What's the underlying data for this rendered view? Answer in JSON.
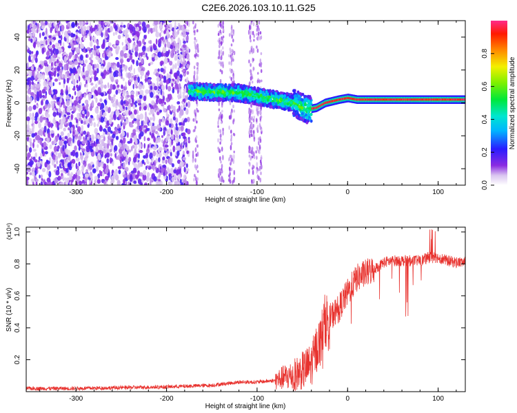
{
  "title": "C2E6.2026.103.10.11.G25",
  "chart_data": [
    {
      "type": "heatmap",
      "xlabel": "Height of straight line (km)",
      "ylabel": "Frequency (Hz)",
      "xlim": [
        -355,
        130
      ],
      "ylim": [
        -50,
        50
      ],
      "x_ticks": [
        -300,
        -200,
        -100,
        0,
        100
      ],
      "y_ticks": [
        -40,
        -20,
        0,
        20,
        40
      ],
      "colorbar": {
        "label": "Normalized spectral amplitude",
        "range": [
          0,
          1
        ],
        "ticks": [
          0.0,
          0.2,
          0.4,
          0.6,
          0.8
        ]
      },
      "regions": [
        {
          "x": [
            -355,
            -175
          ],
          "freq": [
            -50,
            50
          ],
          "amplitude": [
            0.05,
            0.2
          ],
          "description_kind": "noise"
        },
        {
          "x": [
            -175,
            -40
          ],
          "freq": [
            -15,
            10
          ],
          "amplitude": [
            0.2,
            0.6
          ],
          "description_kind": "signal band"
        },
        {
          "x": [
            -40,
            130
          ],
          "freq": [
            -3,
            5
          ],
          "amplitude": [
            0.8,
            1.0
          ],
          "description_kind": "carrier line"
        }
      ],
      "carrier_center": [
        {
          "x": -175,
          "f": 7
        },
        {
          "x": -120,
          "f": 6
        },
        {
          "x": -80,
          "f": 2
        },
        {
          "x": -60,
          "f": 0
        },
        {
          "x": -45,
          "f": -4
        },
        {
          "x": -35,
          "f": -3
        },
        {
          "x": -25,
          "f": 0
        },
        {
          "x": -10,
          "f": 2
        },
        {
          "x": 0,
          "f": 3
        },
        {
          "x": 10,
          "f": 2
        },
        {
          "x": 130,
          "f": 2
        }
      ]
    },
    {
      "type": "line",
      "xlabel": "Height of straight line (km)",
      "ylabel": "SNR (10 * v/v)",
      "y_multiplier": "(x10⁴)",
      "xlim": [
        -355,
        130
      ],
      "ylim": [
        0,
        1.03
      ],
      "x_ticks": [
        -300,
        -200,
        -100,
        0,
        100
      ],
      "y_ticks": [
        0.2,
        0.4,
        0.6,
        0.8,
        1.0
      ],
      "series": [
        {
          "color": "#e8332f",
          "x": [
            -355,
            -300,
            -250,
            -200,
            -150,
            -120,
            -100,
            -80,
            -70,
            -60,
            -50,
            -40,
            -35,
            -30,
            -25,
            -20,
            -10,
            0,
            10,
            20,
            30,
            40,
            50,
            60,
            70,
            80,
            90,
            100,
            110,
            120,
            130
          ],
          "y": [
            0.02,
            0.02,
            0.025,
            0.03,
            0.04,
            0.06,
            0.06,
            0.07,
            0.09,
            0.1,
            0.13,
            0.17,
            0.26,
            0.32,
            0.45,
            0.46,
            0.52,
            0.62,
            0.71,
            0.74,
            0.77,
            0.81,
            0.82,
            0.82,
            0.82,
            0.82,
            0.84,
            0.84,
            0.82,
            0.81,
            0.81
          ]
        }
      ]
    }
  ]
}
